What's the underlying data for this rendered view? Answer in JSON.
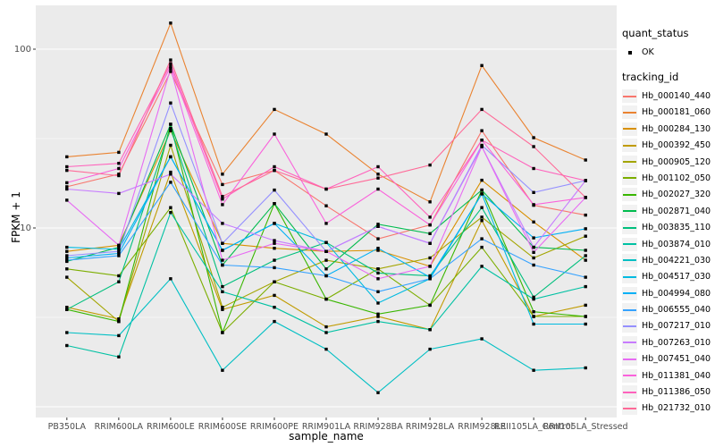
{
  "figure": {
    "y_axis_title": "FPKM + 1",
    "x_axis_title": "sample_name",
    "colors": {
      "panel_bg": "#EBEBEB",
      "grid": "#FFFFFF",
      "tick_label": "#4D4D4D",
      "tick_mark": "#333333",
      "point": "#000000",
      "legend_key_bg": "#F2F2F2"
    }
  },
  "legend": {
    "quant_status_title": "quant_status",
    "quant_status_items": [
      {
        "label": "OK",
        "marker": "black-point"
      }
    ],
    "tracking_id_title": "tracking_id"
  },
  "chart_data": {
    "type": "line",
    "x_type": "categorical",
    "y_scale": "log10",
    "title": "",
    "xlabel": "sample_name",
    "ylabel": "FPKM + 1",
    "y_tick_labels": [
      "100",
      "10"
    ],
    "y_major_breaks": [
      1,
      10,
      100
    ],
    "y_minor_breaks": [
      3.162,
      31.62
    ],
    "ylim": [
      0.9,
      180
    ],
    "grid": true,
    "legend_position": "right",
    "point_marker": "small-black-square",
    "categories": [
      "PB350LA",
      "RRIM600LA",
      "RRIM600LE",
      "RRIM600SE",
      "RRIM600PE",
      "RRIM901LA",
      "RRIM928BA",
      "RRIM928LA",
      "RRIM928LE",
      "RRII105LA_Control",
      "RRII105LA_Stressed"
    ],
    "series": [
      {
        "name": "Hb_000140_440",
        "color": "#F8766D",
        "values": [
          17,
          20,
          75,
          17.5,
          21,
          13.3,
          8.7,
          10.4,
          35,
          13.4,
          11.8
        ]
      },
      {
        "name": "Hb_000181_060",
        "color": "#EA8331",
        "values": [
          25,
          26.5,
          140,
          20,
          46,
          33.5,
          20,
          14,
          81,
          32,
          24
        ]
      },
      {
        "name": "Hb_000284_130",
        "color": "#D89000",
        "values": [
          7.4,
          8.0,
          35,
          8.2,
          7.7,
          7.4,
          7.5,
          6.1,
          18.5,
          10.8,
          6.6
        ]
      },
      {
        "name": "Hb_000392_450",
        "color": "#C09B00",
        "values": [
          3.6,
          3.1,
          20.5,
          3.5,
          4.2,
          2.8,
          3.2,
          2.7,
          11,
          3.2,
          3.7
        ]
      },
      {
        "name": "Hb_000905_120",
        "color": "#A3A500",
        "values": [
          5.3,
          3.0,
          29,
          3.6,
          5.0,
          6.6,
          5.9,
          6.8,
          11.5,
          6.8,
          9.0
        ]
      },
      {
        "name": "Hb_001102_050",
        "color": "#7CAE00",
        "values": [
          5.9,
          5.4,
          13,
          2.6,
          5.0,
          4.0,
          5.9,
          3.7,
          7.8,
          3.2,
          3.2
        ]
      },
      {
        "name": "Hb_002027_320",
        "color": "#39B600",
        "values": [
          3.5,
          3.0,
          38,
          2.6,
          13.7,
          4.0,
          3.3,
          3.7,
          16.3,
          3.4,
          3.2
        ]
      },
      {
        "name": "Hb_002871_040",
        "color": "#00BB4E",
        "values": [
          6.5,
          7.8,
          38,
          6.2,
          13.7,
          5.9,
          10.5,
          9.3,
          16.3,
          7.8,
          7.5
        ]
      },
      {
        "name": "Hb_003835_110",
        "color": "#00BF7D",
        "values": [
          3.5,
          5.0,
          36,
          4.7,
          6.6,
          8.3,
          5.6,
          5.4,
          13,
          4.1,
          7.0
        ]
      },
      {
        "name": "Hb_003874_010",
        "color": "#00C1A3",
        "values": [
          2.2,
          1.9,
          12.2,
          4.4,
          3.6,
          2.6,
          3.0,
          2.7,
          6.1,
          4.0,
          4.7
        ]
      },
      {
        "name": "Hb_004221_030",
        "color": "#00BFC4",
        "values": [
          2.6,
          2.5,
          5.2,
          1.6,
          3.0,
          2.1,
          1.2,
          2.1,
          2.4,
          1.6,
          1.65
        ]
      },
      {
        "name": "Hb_004517_030",
        "color": "#00BAE0",
        "values": [
          7.8,
          7.6,
          25,
          7.5,
          10.6,
          8.3,
          3.8,
          5.2,
          15.5,
          2.9,
          2.9
        ]
      },
      {
        "name": "Hb_004994_080",
        "color": "#00B0F6",
        "values": [
          6.8,
          7.2,
          25,
          7.5,
          10.6,
          5.4,
          7.7,
          5.3,
          15.5,
          8.8,
          9.9
        ]
      },
      {
        "name": "Hb_006555_040",
        "color": "#35A2FF",
        "values": [
          6.6,
          7.0,
          18,
          6.2,
          6.0,
          5.4,
          4.4,
          5.2,
          8.7,
          6.2,
          5.3
        ]
      },
      {
        "name": "Hb_007217_010",
        "color": "#9590FF",
        "values": [
          7.0,
          7.4,
          50,
          8.2,
          16.3,
          7.4,
          10.2,
          8.2,
          29,
          15.8,
          18.4
        ]
      },
      {
        "name": "Hb_007263_010",
        "color": "#C77CFF",
        "values": [
          16.5,
          15.6,
          20,
          10.6,
          8.5,
          7.4,
          10.2,
          8.2,
          28.5,
          7.8,
          18.4
        ]
      },
      {
        "name": "Hb_007451_040",
        "color": "#E76BF3",
        "values": [
          14.3,
          8.0,
          78,
          6.6,
          8.2,
          7.4,
          5.2,
          6.1,
          28.5,
          7.3,
          14.8
        ]
      },
      {
        "name": "Hb_011381_040",
        "color": "#FA62DB",
        "values": [
          17.9,
          21.5,
          80,
          13.5,
          33.5,
          10.6,
          16.5,
          10.4,
          31,
          13.5,
          14.8
        ]
      },
      {
        "name": "Hb_011386_050",
        "color": "#FF62BC",
        "values": [
          22,
          23,
          83,
          14.5,
          22,
          16.5,
          22,
          11.5,
          31,
          21.5,
          18.4
        ]
      },
      {
        "name": "Hb_021732_010",
        "color": "#FF6A98",
        "values": [
          21,
          19.6,
          87,
          15,
          21,
          16.5,
          19,
          22.5,
          46,
          28.5,
          14.8
        ]
      }
    ]
  }
}
